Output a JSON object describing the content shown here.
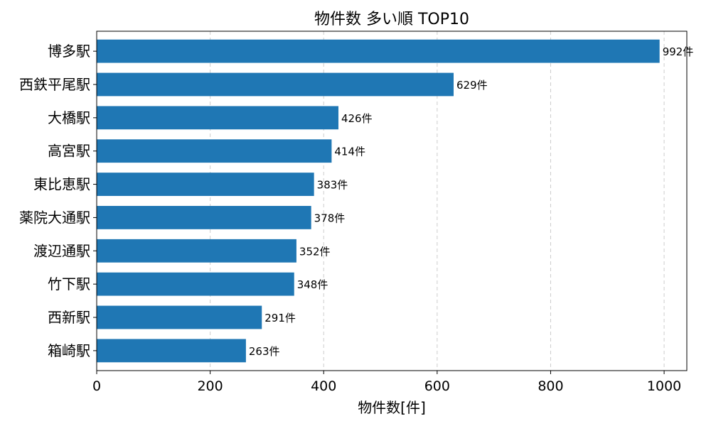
{
  "chart_data": {
    "type": "bar",
    "orientation": "horizontal",
    "title": "物件数 多い順 TOP10",
    "xlabel": "物件数[件]",
    "ylabel": "",
    "xlim": [
      0,
      1040
    ],
    "x_ticks": [
      0,
      200,
      400,
      600,
      800,
      1000
    ],
    "grid": "x, dashed",
    "bar_color": "#1f77b4",
    "value_suffix": "件",
    "categories": [
      "博多駅",
      "西鉄平尾駅",
      "大橋駅",
      "高宮駅",
      "東比恵駅",
      "薬院大通駅",
      "渡辺通駅",
      "竹下駅",
      "西新駅",
      "箱崎駅"
    ],
    "values": [
      992,
      629,
      426,
      414,
      383,
      378,
      352,
      348,
      291,
      263
    ]
  }
}
